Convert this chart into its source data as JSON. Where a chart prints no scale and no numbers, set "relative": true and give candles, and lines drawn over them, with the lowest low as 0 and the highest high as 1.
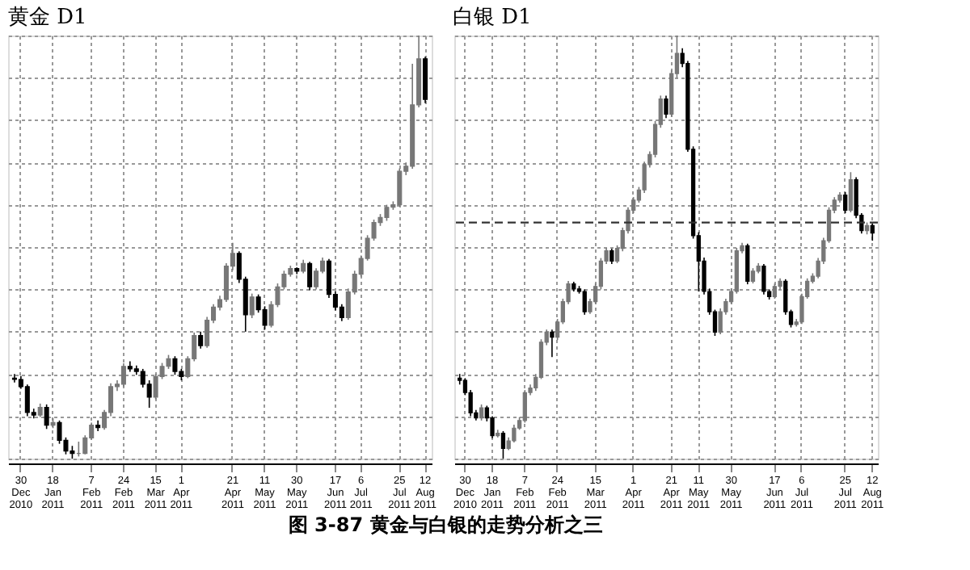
{
  "chart_data": [
    {
      "type": "candlestick",
      "title": "黄金 D1",
      "relative": true,
      "grid": true,
      "annotations": [
        "图 3-87    黄金与白银的走势分析之三"
      ],
      "categories": [
        null,
        "30 Dec 2010",
        null,
        null,
        null,
        null,
        "18 Jan 2011",
        null,
        null,
        null,
        null,
        null,
        "7 Feb 2011",
        null,
        null,
        null,
        null,
        "24 Feb 2011",
        null,
        null,
        null,
        null,
        "15 Mar 2011",
        null,
        null,
        null,
        "1 Apr 2011",
        null,
        null,
        null,
        null,
        null,
        null,
        null,
        "21 Apr 2011",
        null,
        null,
        null,
        null,
        "11 May 2011",
        null,
        null,
        null,
        null,
        "30 May 2011",
        null,
        null,
        null,
        null,
        null,
        "17 Jun 2011",
        null,
        null,
        null,
        "6 Jul 2011",
        null,
        null,
        null,
        null,
        null,
        "25 Jul 2011",
        null,
        null,
        null,
        "12 Aug 2011"
      ],
      "ohlc": [
        [
          0.19,
          0.2,
          0.18,
          0.187
        ],
        [
          0.187,
          0.195,
          0.165,
          0.17
        ],
        [
          0.17,
          0.175,
          0.1,
          0.109
        ],
        [
          0.109,
          0.118,
          0.095,
          0.103
        ],
        [
          0.103,
          0.13,
          0.098,
          0.121
        ],
        [
          0.121,
          0.128,
          0.07,
          0.079
        ],
        [
          0.079,
          0.095,
          0.072,
          0.085
        ],
        [
          0.085,
          0.09,
          0.035,
          0.043
        ],
        [
          0.043,
          0.05,
          0.01,
          0.018
        ],
        [
          0.018,
          0.03,
          0.0,
          0.012
        ],
        [
          0.012,
          0.04,
          0.005,
          0.012
        ],
        [
          0.012,
          0.055,
          0.01,
          0.049
        ],
        [
          0.049,
          0.085,
          0.045,
          0.079
        ],
        [
          0.079,
          0.09,
          0.065,
          0.073
        ],
        [
          0.073,
          0.115,
          0.068,
          0.109
        ],
        [
          0.109,
          0.178,
          0.1,
          0.17
        ],
        [
          0.17,
          0.185,
          0.16,
          0.176
        ],
        [
          0.176,
          0.225,
          0.17,
          0.218
        ],
        [
          0.218,
          0.23,
          0.205,
          0.212
        ],
        [
          0.212,
          0.22,
          0.198,
          0.206
        ],
        [
          0.206,
          0.212,
          0.168,
          0.176
        ],
        [
          0.176,
          0.185,
          0.12,
          0.145
        ],
        [
          0.145,
          0.2,
          0.14,
          0.194
        ],
        [
          0.194,
          0.226,
          0.188,
          0.218
        ],
        [
          0.218,
          0.245,
          0.212,
          0.236
        ],
        [
          0.236,
          0.242,
          0.198,
          0.206
        ],
        [
          0.206,
          0.212,
          0.185,
          0.194
        ],
        [
          0.194,
          0.242,
          0.19,
          0.236
        ],
        [
          0.236,
          0.298,
          0.23,
          0.291
        ],
        [
          0.291,
          0.3,
          0.26,
          0.267
        ],
        [
          0.267,
          0.335,
          0.262,
          0.327
        ],
        [
          0.327,
          0.365,
          0.32,
          0.358
        ],
        [
          0.358,
          0.385,
          0.35,
          0.376
        ],
        [
          0.376,
          0.462,
          0.37,
          0.455
        ],
        [
          0.455,
          0.51,
          0.445,
          0.485
        ],
        [
          0.485,
          0.49,
          0.415,
          0.424
        ],
        [
          0.424,
          0.43,
          0.3,
          0.34
        ],
        [
          0.34,
          0.39,
          0.332,
          0.382
        ],
        [
          0.382,
          0.388,
          0.345,
          0.352
        ],
        [
          0.352,
          0.36,
          0.305,
          0.315
        ],
        [
          0.315,
          0.372,
          0.31,
          0.364
        ],
        [
          0.364,
          0.414,
          0.358,
          0.406
        ],
        [
          0.406,
          0.444,
          0.4,
          0.436
        ],
        [
          0.436,
          0.456,
          0.43,
          0.449
        ],
        [
          0.449,
          0.452,
          0.436,
          0.443
        ],
        [
          0.443,
          0.47,
          0.438,
          0.461
        ],
        [
          0.461,
          0.465,
          0.398,
          0.406
        ],
        [
          0.406,
          0.45,
          0.4,
          0.443
        ],
        [
          0.443,
          0.475,
          0.438,
          0.467
        ],
        [
          0.467,
          0.472,
          0.38,
          0.388
        ],
        [
          0.388,
          0.395,
          0.35,
          0.358
        ],
        [
          0.358,
          0.365,
          0.325,
          0.333
        ],
        [
          0.333,
          0.402,
          0.328,
          0.394
        ],
        [
          0.394,
          0.444,
          0.388,
          0.436
        ],
        [
          0.436,
          0.48,
          0.43,
          0.473
        ],
        [
          0.473,
          0.528,
          0.468,
          0.521
        ],
        [
          0.521,
          0.565,
          0.515,
          0.558
        ],
        [
          0.558,
          0.578,
          0.55,
          0.57
        ],
        [
          0.57,
          0.6,
          0.562,
          0.594
        ],
        [
          0.594,
          0.608,
          0.588,
          0.6
        ],
        [
          0.6,
          0.686,
          0.595,
          0.679
        ],
        [
          0.679,
          0.7,
          0.67,
          0.691
        ],
        [
          0.691,
          0.933,
          0.685,
          0.836
        ],
        [
          0.836,
          1.0,
          0.83,
          0.945
        ],
        [
          0.945,
          0.95,
          0.84,
          0.849
        ]
      ]
    },
    {
      "type": "candlestick",
      "title": "白银 D1",
      "relative": true,
      "grid": true,
      "ref_lines": [
        {
          "axis": "y",
          "value": 0.558,
          "line_style": "dashed"
        }
      ],
      "categories": [
        null,
        "30 Dec 2010",
        null,
        null,
        null,
        null,
        "18 Jan 2011",
        null,
        null,
        null,
        null,
        null,
        "7 Feb 2011",
        null,
        null,
        null,
        null,
        null,
        "24 Feb 2011",
        null,
        null,
        null,
        null,
        null,
        null,
        "15 Mar 2011",
        null,
        null,
        null,
        null,
        null,
        null,
        "1 Apr 2011",
        null,
        null,
        null,
        null,
        null,
        null,
        "21 Apr 2011",
        null,
        null,
        null,
        null,
        "11 May 2011",
        null,
        null,
        null,
        null,
        null,
        "30 May 2011",
        null,
        null,
        null,
        null,
        null,
        null,
        null,
        "17 Jun 2011",
        null,
        null,
        null,
        null,
        "6 Jul 2011",
        null,
        null,
        null,
        null,
        null,
        null,
        null,
        "25 Jul 2011",
        null,
        null,
        null,
        null,
        "12 Aug 2011"
      ],
      "ohlc": [
        [
          0.19,
          0.2,
          0.175,
          0.185
        ],
        [
          0.185,
          0.19,
          0.15,
          0.156
        ],
        [
          0.156,
          0.162,
          0.1,
          0.108
        ],
        [
          0.108,
          0.115,
          0.09,
          0.096
        ],
        [
          0.096,
          0.128,
          0.09,
          0.12
        ],
        [
          0.12,
          0.125,
          0.088,
          0.096
        ],
        [
          0.096,
          0.1,
          0.048,
          0.054
        ],
        [
          0.054,
          0.068,
          0.05,
          0.06
        ],
        [
          0.06,
          0.065,
          0.0,
          0.024
        ],
        [
          0.024,
          0.05,
          0.02,
          0.042
        ],
        [
          0.042,
          0.08,
          0.038,
          0.072
        ],
        [
          0.072,
          0.098,
          0.068,
          0.09
        ],
        [
          0.09,
          0.162,
          0.085,
          0.156
        ],
        [
          0.156,
          0.175,
          0.15,
          0.167
        ],
        [
          0.167,
          0.2,
          0.16,
          0.192
        ],
        [
          0.192,
          0.282,
          0.188,
          0.275
        ],
        [
          0.275,
          0.305,
          0.268,
          0.299
        ],
        [
          0.299,
          0.305,
          0.24,
          0.287
        ],
        [
          0.287,
          0.33,
          0.28,
          0.323
        ],
        [
          0.323,
          0.378,
          0.318,
          0.371
        ],
        [
          0.371,
          0.42,
          0.365,
          0.413
        ],
        [
          0.413,
          0.418,
          0.395,
          0.401
        ],
        [
          0.401,
          0.408,
          0.39,
          0.395
        ],
        [
          0.395,
          0.4,
          0.34,
          0.347
        ],
        [
          0.347,
          0.378,
          0.342,
          0.371
        ],
        [
          0.371,
          0.414,
          0.366,
          0.407
        ],
        [
          0.407,
          0.474,
          0.4,
          0.467
        ],
        [
          0.467,
          0.498,
          0.46,
          0.491
        ],
        [
          0.491,
          0.496,
          0.46,
          0.467
        ],
        [
          0.467,
          0.504,
          0.462,
          0.497
        ],
        [
          0.497,
          0.546,
          0.49,
          0.539
        ],
        [
          0.539,
          0.594,
          0.532,
          0.587
        ],
        [
          0.587,
          0.618,
          0.58,
          0.611
        ],
        [
          0.611,
          0.642,
          0.605,
          0.635
        ],
        [
          0.635,
          0.702,
          0.628,
          0.695
        ],
        [
          0.695,
          0.726,
          0.688,
          0.719
        ],
        [
          0.719,
          0.798,
          0.712,
          0.79
        ],
        [
          0.79,
          0.858,
          0.782,
          0.85
        ],
        [
          0.85,
          0.858,
          0.805,
          0.814
        ],
        [
          0.814,
          0.918,
          0.808,
          0.91
        ],
        [
          0.91,
          1.0,
          0.9,
          0.958
        ],
        [
          0.958,
          0.97,
          0.925,
          0.934
        ],
        [
          0.934,
          0.94,
          0.725,
          0.731
        ],
        [
          0.731,
          0.738,
          0.52,
          0.527
        ],
        [
          0.527,
          0.535,
          0.395,
          0.467
        ],
        [
          0.467,
          0.475,
          0.388,
          0.395
        ],
        [
          0.395,
          0.402,
          0.34,
          0.347
        ],
        [
          0.347,
          0.352,
          0.29,
          0.299
        ],
        [
          0.299,
          0.355,
          0.294,
          0.347
        ],
        [
          0.347,
          0.378,
          0.34,
          0.371
        ],
        [
          0.371,
          0.402,
          0.366,
          0.395
        ],
        [
          0.395,
          0.498,
          0.39,
          0.491
        ],
        [
          0.491,
          0.51,
          0.485,
          0.503
        ],
        [
          0.503,
          0.508,
          0.412,
          0.419
        ],
        [
          0.419,
          0.45,
          0.414,
          0.443
        ],
        [
          0.443,
          0.462,
          0.438,
          0.455
        ],
        [
          0.455,
          0.46,
          0.388,
          0.395
        ],
        [
          0.395,
          0.4,
          0.376,
          0.383
        ],
        [
          0.383,
          0.414,
          0.378,
          0.407
        ],
        [
          0.407,
          0.426,
          0.4,
          0.419
        ],
        [
          0.419,
          0.424,
          0.34,
          0.347
        ],
        [
          0.347,
          0.352,
          0.31,
          0.317
        ],
        [
          0.317,
          0.33,
          0.312,
          0.323
        ],
        [
          0.323,
          0.39,
          0.318,
          0.383
        ],
        [
          0.383,
          0.426,
          0.378,
          0.419
        ],
        [
          0.419,
          0.438,
          0.414,
          0.431
        ],
        [
          0.431,
          0.474,
          0.426,
          0.467
        ],
        [
          0.467,
          0.522,
          0.46,
          0.515
        ],
        [
          0.515,
          0.594,
          0.51,
          0.587
        ],
        [
          0.587,
          0.618,
          0.58,
          0.611
        ],
        [
          0.611,
          0.63,
          0.605,
          0.623
        ],
        [
          0.623,
          0.63,
          0.58,
          0.587
        ],
        [
          0.587,
          0.677,
          0.582,
          0.659
        ],
        [
          0.659,
          0.665,
          0.568,
          0.575
        ],
        [
          0.575,
          0.58,
          0.532,
          0.539
        ],
        [
          0.539,
          0.558,
          0.53,
          0.551
        ],
        [
          0.551,
          0.556,
          0.515,
          0.533
        ]
      ]
    }
  ]
}
